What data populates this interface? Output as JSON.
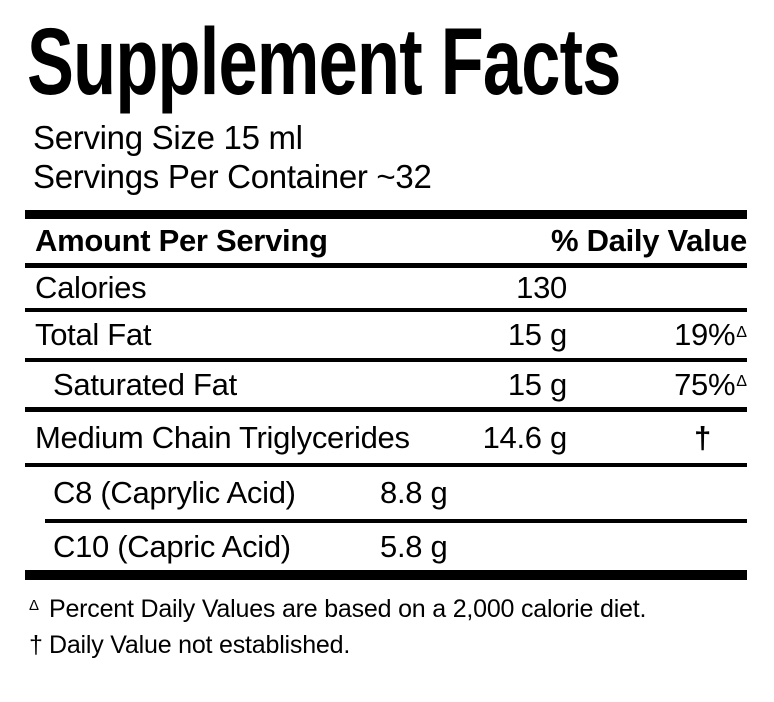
{
  "label": {
    "title": "Supplement Facts",
    "serving_size": "Serving Size 15 ml",
    "servings_per_container": "Servings Per Container ~32"
  },
  "table": {
    "header": {
      "amount_per_serving": "Amount Per Serving",
      "percent_daily_value": "% Daily Value"
    },
    "rows": [
      {
        "label": "Calories",
        "amount": "130",
        "dv": "",
        "indent": false
      },
      {
        "label": "Total Fat",
        "amount": "15 g",
        "dv": "19%",
        "dv_mark": "Δ",
        "indent": false
      },
      {
        "label": "Saturated Fat",
        "amount": "15 g",
        "dv": "75%",
        "dv_mark": "Δ",
        "indent": true
      },
      {
        "label": "Medium Chain Triglycerides",
        "amount": "14.6 g",
        "dv": "†",
        "indent": false
      },
      {
        "label": "C8 (Caprylic Acid)",
        "amount": "8.8 g",
        "indent": true
      },
      {
        "label": "C10 (Capric Acid)",
        "amount": "5.8 g",
        "indent": true
      }
    ]
  },
  "footnotes": [
    {
      "mark": "Δ",
      "text": "Percent Daily Values are based on a 2,000 calorie diet."
    },
    {
      "mark": "†",
      "text": "Daily Value not established."
    }
  ],
  "colors": {
    "text": "#000000",
    "background": "#ffffff",
    "rule": "#000000"
  }
}
